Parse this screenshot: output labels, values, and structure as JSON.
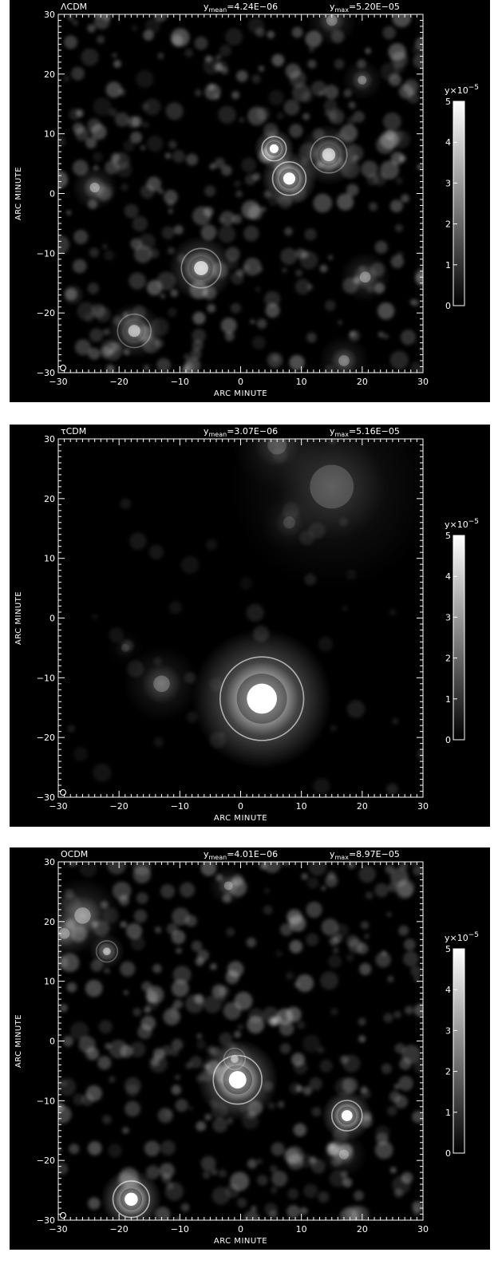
{
  "colors": {
    "background": "#000000",
    "foreground": "#ffffff"
  },
  "colorbar": {
    "label": "y×10",
    "exponent": "−5",
    "ticks": [
      "0",
      "1",
      "2",
      "3",
      "4",
      "5"
    ],
    "range": [
      0,
      5
    ]
  },
  "chart_data": [
    {
      "type": "heatmap",
      "model": "ΛCDM",
      "ymean_label": "y",
      "ymean_sub": "mean",
      "ymean_value": "=4.24E−06",
      "ymax_label": "y",
      "ymax_sub": "max",
      "ymax_value": "=5.20E−05",
      "xlabel": "ARC MINUTE",
      "ylabel": "ARC MINUTE",
      "xlim": [
        -30,
        30
      ],
      "ylim": [
        -30,
        30
      ],
      "xticks": [
        "−30",
        "−20",
        "−10",
        "0",
        "10",
        "20",
        "30"
      ],
      "yticks": [
        "30",
        "20",
        "10",
        "0",
        "−10",
        "−20",
        "−30"
      ],
      "ymean": 4.24e-06,
      "ymax": 5.2e-05,
      "sources": [
        {
          "x": 5.5,
          "y": 7.5,
          "amp": 5.0,
          "r": 1.6,
          "ring": true
        },
        {
          "x": 8,
          "y": 2.5,
          "amp": 4.8,
          "r": 2.2,
          "ring": true
        },
        {
          "x": 14.5,
          "y": 6.5,
          "amp": 3.0,
          "r": 2.4,
          "ring": true
        },
        {
          "x": -6.5,
          "y": -12.5,
          "amp": 3.4,
          "r": 2.6,
          "ring": true
        },
        {
          "x": -17.5,
          "y": -23,
          "amp": 2.6,
          "r": 2.2,
          "ring": true
        },
        {
          "x": -24,
          "y": 1,
          "amp": 1.8,
          "r": 1.8,
          "ring": false
        },
        {
          "x": 20.5,
          "y": -14,
          "amp": 1.6,
          "r": 2.0,
          "ring": false
        },
        {
          "x": 20,
          "y": 19,
          "amp": 1.4,
          "r": 1.6,
          "ring": false
        },
        {
          "x": 15,
          "y": 29,
          "amp": 1.4,
          "r": 2.0,
          "ring": false
        },
        {
          "x": 17,
          "y": -28,
          "amp": 1.4,
          "r": 2.0,
          "ring": false
        }
      ]
    },
    {
      "type": "heatmap",
      "model": "τCDM",
      "ymean_label": "y",
      "ymean_sub": "mean",
      "ymean_value": "=3.07E−06",
      "ymax_label": "y",
      "ymax_sub": "max",
      "ymax_value": "=5.16E−05",
      "xlabel": "ARC MINUTE",
      "ylabel": "ARC MINUTE",
      "xlim": [
        -30,
        30
      ],
      "ylim": [
        -30,
        30
      ],
      "xticks": [
        "−30",
        "−20",
        "−10",
        "0",
        "10",
        "20",
        "30"
      ],
      "yticks": [
        "30",
        "20",
        "10",
        "0",
        "−10",
        "−20",
        "−30"
      ],
      "ymean": 3.07e-06,
      "ymax": 5.16e-05,
      "sources": [
        {
          "x": 3.5,
          "y": -13.5,
          "amp": 5.0,
          "r": 5.5,
          "ring": true
        },
        {
          "x": -13,
          "y": -11,
          "amp": 1.2,
          "r": 3.0,
          "ring": false
        },
        {
          "x": 15,
          "y": 22,
          "amp": 0.9,
          "r": 8.0,
          "ring": false
        },
        {
          "x": 6,
          "y": 29,
          "amp": 0.8,
          "r": 3.5,
          "ring": false
        },
        {
          "x": 8,
          "y": 16,
          "amp": 0.6,
          "r": 2.2,
          "ring": false
        },
        {
          "x": -19,
          "y": -5,
          "amp": 0.4,
          "r": 1.5,
          "ring": false
        }
      ]
    },
    {
      "type": "heatmap",
      "model": "OCDM",
      "ymean_label": "y",
      "ymean_sub": "mean",
      "ymean_value": "=4.01E−06",
      "ymax_label": "y",
      "ymax_sub": "max",
      "ymax_value": "=8.97E−05",
      "xlabel": "ARC MINUTE",
      "ylabel": "ARC MINUTE",
      "xlim": [
        -30,
        30
      ],
      "ylim": [
        -30,
        30
      ],
      "xticks": [
        "−30",
        "−20",
        "−10",
        "0",
        "10",
        "20",
        "30"
      ],
      "yticks": [
        "30",
        "20",
        "10",
        "0",
        "−10",
        "−20",
        "−30"
      ],
      "ymean": 4.01e-06,
      "ymax": 8.97e-05,
      "sources": [
        {
          "x": -0.5,
          "y": -6.5,
          "amp": 5.0,
          "r": 3.2,
          "ring": true
        },
        {
          "x": -1,
          "y": -3,
          "amp": 2.2,
          "r": 1.4,
          "ring": true
        },
        {
          "x": 17.5,
          "y": -12.5,
          "amp": 4.8,
          "r": 2.0,
          "ring": true
        },
        {
          "x": -18,
          "y": -26.5,
          "amp": 5.0,
          "r": 2.4,
          "ring": true
        },
        {
          "x": -22,
          "y": 15,
          "amp": 2.4,
          "r": 1.4,
          "ring": true
        },
        {
          "x": -26,
          "y": 21,
          "amp": 1.8,
          "r": 3.0,
          "ring": false
        },
        {
          "x": -29,
          "y": 18,
          "amp": 1.6,
          "r": 2.0,
          "ring": false
        },
        {
          "x": 17,
          "y": -19,
          "amp": 1.4,
          "r": 1.8,
          "ring": false
        },
        {
          "x": -2,
          "y": 26,
          "amp": 1.4,
          "r": 1.6,
          "ring": false
        }
      ]
    }
  ]
}
